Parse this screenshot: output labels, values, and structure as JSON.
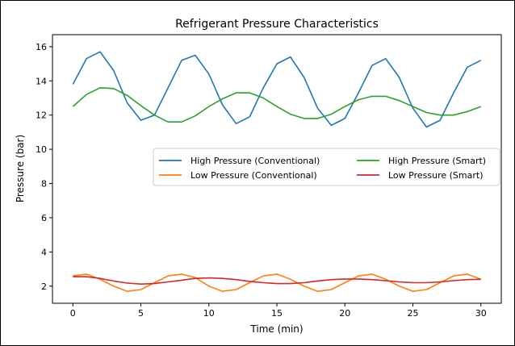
{
  "chart_data": {
    "type": "line",
    "title": "Refrigerant Pressure Characteristics",
    "xlabel": "Time (min)",
    "ylabel": "Pressure (bar)",
    "xlim": [
      -1.5,
      31.5
    ],
    "ylim": [
      1.0,
      16.7
    ],
    "xticks": [
      0,
      5,
      10,
      15,
      20,
      25,
      30
    ],
    "yticks": [
      2,
      4,
      6,
      8,
      10,
      12,
      14,
      16
    ],
    "grid": false,
    "legend_position": "center-right",
    "x": [
      0,
      1,
      2,
      3,
      4,
      5,
      6,
      7,
      8,
      9,
      10,
      11,
      12,
      13,
      14,
      15,
      16,
      17,
      18,
      19,
      20,
      21,
      22,
      23,
      24,
      25,
      26,
      27,
      28,
      29,
      30
    ],
    "series": [
      {
        "name": "High Pressure (Conventional)",
        "color": "#1f77b4",
        "values": [
          13.8,
          15.3,
          15.7,
          14.6,
          12.7,
          11.7,
          12.0,
          13.6,
          15.2,
          15.5,
          14.4,
          12.6,
          11.5,
          11.9,
          13.6,
          15.0,
          15.4,
          14.2,
          12.4,
          11.4,
          11.8,
          13.3,
          14.9,
          15.3,
          14.2,
          12.4,
          11.3,
          11.7,
          13.3,
          14.8,
          15.2
        ]
      },
      {
        "name": "Low Pressure (Conventional)",
        "color": "#ff7f0e",
        "values": [
          2.6,
          2.7,
          2.4,
          2.0,
          1.7,
          1.8,
          2.2,
          2.6,
          2.7,
          2.5,
          2.0,
          1.7,
          1.8,
          2.2,
          2.6,
          2.7,
          2.4,
          2.0,
          1.7,
          1.8,
          2.2,
          2.6,
          2.7,
          2.4,
          2.0,
          1.7,
          1.8,
          2.2,
          2.6,
          2.7,
          2.4
        ]
      },
      {
        "name": "High Pressure (Smart)",
        "color": "#2ca02c",
        "values": [
          12.5,
          13.2,
          13.6,
          13.55,
          13.15,
          12.55,
          12.0,
          11.6,
          11.6,
          11.95,
          12.5,
          12.95,
          13.3,
          13.3,
          13.0,
          12.5,
          12.05,
          11.8,
          11.8,
          12.05,
          12.5,
          12.9,
          13.1,
          13.1,
          12.85,
          12.5,
          12.15,
          12.0,
          12.0,
          12.2,
          12.5
        ]
      },
      {
        "name": "Low Pressure (Smart)",
        "color": "#d62728",
        "values": [
          2.55,
          2.55,
          2.45,
          2.3,
          2.18,
          2.12,
          2.15,
          2.25,
          2.35,
          2.45,
          2.48,
          2.45,
          2.38,
          2.28,
          2.2,
          2.15,
          2.15,
          2.2,
          2.3,
          2.38,
          2.42,
          2.42,
          2.38,
          2.32,
          2.25,
          2.2,
          2.2,
          2.25,
          2.32,
          2.38,
          2.4
        ]
      }
    ]
  }
}
